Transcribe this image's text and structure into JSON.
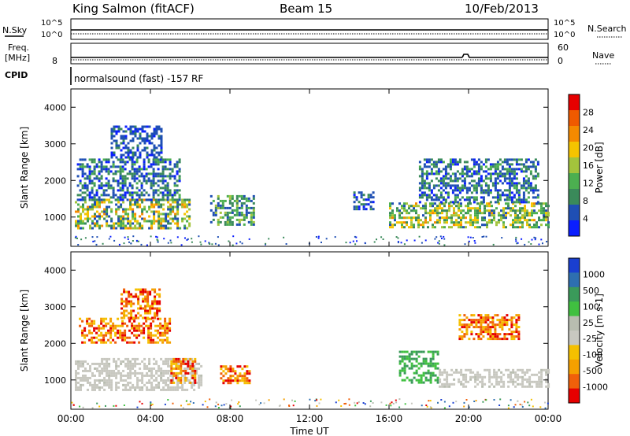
{
  "header": {
    "station": "King Salmon (fitACF)",
    "beam": "Beam 15",
    "date": "10/Feb/2013"
  },
  "status_panels": {
    "nsky_label": "N.Sky",
    "nsearch_label": "N.Search",
    "noise_ticks_left": [
      "10^5",
      "10^0"
    ],
    "noise_ticks_right": [
      "10^5",
      "10^0"
    ],
    "freq_label_line1": "Freq.",
    "freq_label_line2": "[MHz]",
    "freq_ticks": [
      "8"
    ],
    "nave_label": "Nave",
    "nave_ticks": [
      "60",
      "0"
    ],
    "cpid_label": "CPID",
    "cpid_text": "normalsound (fast) -157 RF"
  },
  "colors": {
    "power": [
      "#0a1eff",
      "#1f4fb4",
      "#3a8a5a",
      "#4caf50",
      "#a3c43c",
      "#f5c400",
      "#f58a00",
      "#f05a00",
      "#e60000"
    ],
    "velocity": [
      "#e60000",
      "#f0600a",
      "#f5a000",
      "#f5c000",
      "#c8c8c0",
      "#b8bdb0",
      "#40c040",
      "#3a9a5a",
      "#2e6fb0",
      "#1a3fd0"
    ]
  },
  "chart_data": [
    {
      "type": "heatmap",
      "name_hint": "power",
      "ylabel": "Slant Range [km]",
      "colorbar_label": "Power [dB]",
      "colorbar_ticks": [
        "28",
        "24",
        "20",
        "16",
        "12",
        "8",
        "4"
      ],
      "x_ticks": [
        "00:00",
        "04:00",
        "08:00",
        "12:00",
        "16:00",
        "20:00",
        "00:00"
      ],
      "y_ticks": [
        "4000",
        "3000",
        "2000",
        "1000"
      ],
      "xlim_hours": [
        0,
        24
      ],
      "ylim_km": [
        200,
        4500
      ],
      "echo_regions": [
        {
          "t0": 0.2,
          "t1": 6.0,
          "r0": 700,
          "r1": 1500,
          "pw": [
            6,
            26
          ]
        },
        {
          "t0": 0.3,
          "t1": 5.5,
          "r0": 1500,
          "r1": 2600,
          "pw": [
            4,
            14
          ]
        },
        {
          "t0": 2.0,
          "t1": 4.5,
          "r0": 2600,
          "r1": 3500,
          "pw": [
            4,
            10
          ]
        },
        {
          "t0": 7.0,
          "t1": 9.2,
          "r0": 800,
          "r1": 1600,
          "pw": [
            6,
            18
          ]
        },
        {
          "t0": 14.2,
          "t1": 15.2,
          "r0": 1200,
          "r1": 1700,
          "pw": [
            4,
            12
          ]
        },
        {
          "t0": 16.0,
          "t1": 24.0,
          "r0": 700,
          "r1": 1400,
          "pw": [
            8,
            24
          ]
        },
        {
          "t0": 17.5,
          "t1": 23.5,
          "r0": 1400,
          "r1": 2600,
          "pw": [
            4,
            14
          ]
        }
      ]
    },
    {
      "type": "heatmap",
      "name_hint": "velocity",
      "ylabel": "Slant Range [km]",
      "xlabel": "Time UT",
      "colorbar_label": "Velocity [m s-1]",
      "colorbar_ticks": [
        "1000",
        "500",
        "100",
        "25",
        "-25",
        "-100",
        "-500",
        "-1000"
      ],
      "x_ticks": [
        "00:00",
        "04:00",
        "08:00",
        "12:00",
        "16:00",
        "20:00",
        "00:00"
      ],
      "y_ticks": [
        "4000",
        "3000",
        "2000",
        "1000"
      ],
      "xlim_hours": [
        0,
        24
      ],
      "ylim_km": [
        200,
        4500
      ],
      "echo_regions": [
        {
          "t0": 0.2,
          "t1": 6.5,
          "r0": 700,
          "r1": 1600,
          "vel": "ground"
        },
        {
          "t0": 0.4,
          "t1": 5.0,
          "r0": 2000,
          "r1": 2700,
          "vel": "neg"
        },
        {
          "t0": 2.5,
          "t1": 4.5,
          "r0": 2700,
          "r1": 3500,
          "vel": "neg"
        },
        {
          "t0": 5.0,
          "t1": 6.2,
          "r0": 900,
          "r1": 1600,
          "vel": "neg"
        },
        {
          "t0": 7.5,
          "t1": 9.0,
          "r0": 900,
          "r1": 1400,
          "vel": "neg"
        },
        {
          "t0": 16.5,
          "t1": 18.5,
          "r0": 900,
          "r1": 1800,
          "vel": "pos"
        },
        {
          "t0": 18.5,
          "t1": 24.0,
          "r0": 800,
          "r1": 1300,
          "vel": "ground"
        },
        {
          "t0": 19.5,
          "t1": 22.5,
          "r0": 2100,
          "r1": 2800,
          "vel": "neg"
        }
      ]
    }
  ]
}
